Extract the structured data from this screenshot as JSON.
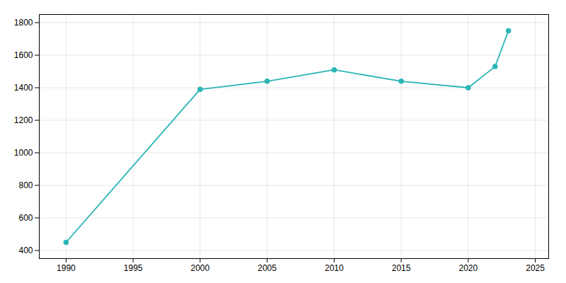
{
  "chart_data": {
    "type": "line",
    "x": [
      1990,
      2000,
      2005,
      2010,
      2015,
      2020,
      2022,
      2023
    ],
    "values": [
      450,
      1390,
      1440,
      1510,
      1440,
      1400,
      1530,
      1750
    ],
    "color": "#2ab5b5",
    "marker": "circle",
    "xlim": [
      1988,
      2026
    ],
    "ylim": [
      350,
      1850
    ],
    "xticks": [
      1990,
      1995,
      2000,
      2005,
      2010,
      2015,
      2020,
      2025
    ],
    "yticks": [
      400,
      600,
      800,
      1000,
      1200,
      1400,
      1600,
      1800
    ],
    "grid": true
  }
}
